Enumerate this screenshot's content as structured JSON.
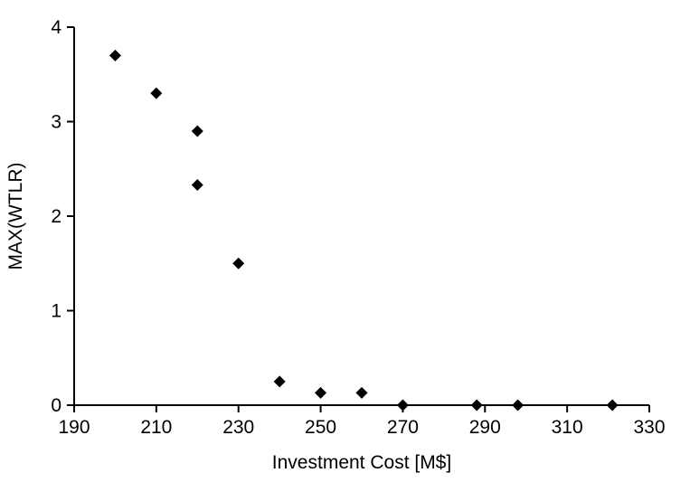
{
  "chart_data": {
    "type": "scatter",
    "title": "",
    "xlabel": "Investment Cost [M$]",
    "ylabel": "MAX(WTLR)",
    "xlim": [
      190,
      330
    ],
    "ylim": [
      0,
      4
    ],
    "x_ticks": [
      "190",
      "210",
      "230",
      "250",
      "270",
      "290",
      "310",
      "330"
    ],
    "y_ticks": [
      "0",
      "1",
      "2",
      "3",
      "4"
    ],
    "grid": false,
    "legend": "none",
    "marker": {
      "shape": "diamond",
      "color": "#000000",
      "size": 13
    },
    "points": [
      {
        "x": 200,
        "y": 3.7
      },
      {
        "x": 210,
        "y": 3.3
      },
      {
        "x": 220,
        "y": 2.9
      },
      {
        "x": 220,
        "y": 2.33
      },
      {
        "x": 230,
        "y": 1.5
      },
      {
        "x": 240,
        "y": 0.25
      },
      {
        "x": 250,
        "y": 0.13
      },
      {
        "x": 260,
        "y": 0.13
      },
      {
        "x": 270,
        "y": 0.0
      },
      {
        "x": 288,
        "y": 0.0
      },
      {
        "x": 298,
        "y": 0.0
      },
      {
        "x": 321,
        "y": 0.0
      }
    ]
  }
}
